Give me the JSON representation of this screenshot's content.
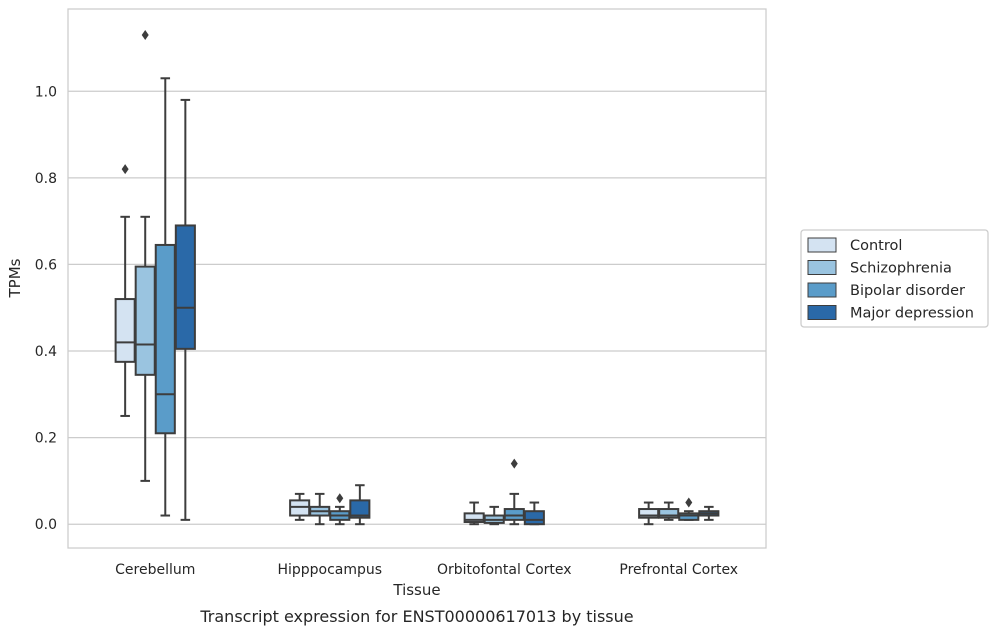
{
  "chart_data": {
    "type": "boxplot",
    "title": "",
    "caption": "Transcript expression for ENST00000617013 by tissue",
    "xlabel": "Tissue",
    "ylabel": "TPMs",
    "ylim": [
      -0.055,
      1.19
    ],
    "yticks": [
      0.0,
      0.2,
      0.4,
      0.6,
      0.8,
      1.0
    ],
    "ytick_labels": [
      "0.0",
      "0.2",
      "0.4",
      "0.6",
      "0.8",
      "1.0"
    ],
    "grid": "horizontal",
    "legend_position": "right",
    "categories": [
      "Cerebellum",
      "Hipppocampus",
      "Orbitofontal Cortex",
      "Prefrontal Cortex"
    ],
    "series": [
      {
        "name": "Control",
        "color": "#d4e3f2",
        "boxes": [
          {
            "whisker_low": 0.25,
            "q1": 0.375,
            "median": 0.42,
            "q3": 0.52,
            "whisker_high": 0.71,
            "outliers": [
              0.82
            ]
          },
          {
            "whisker_low": 0.01,
            "q1": 0.02,
            "median": 0.04,
            "q3": 0.055,
            "whisker_high": 0.07,
            "outliers": []
          },
          {
            "whisker_low": 0.0,
            "q1": 0.005,
            "median": 0.01,
            "q3": 0.025,
            "whisker_high": 0.05,
            "outliers": []
          },
          {
            "whisker_low": 0.0,
            "q1": 0.015,
            "median": 0.02,
            "q3": 0.035,
            "whisker_high": 0.05,
            "outliers": []
          }
        ]
      },
      {
        "name": "Schizophrenia",
        "color": "#9ac4e0",
        "boxes": [
          {
            "whisker_low": 0.1,
            "q1": 0.345,
            "median": 0.415,
            "q3": 0.595,
            "whisker_high": 0.71,
            "outliers": [
              1.13
            ]
          },
          {
            "whisker_low": 0.0,
            "q1": 0.02,
            "median": 0.03,
            "q3": 0.04,
            "whisker_high": 0.07,
            "outliers": []
          },
          {
            "whisker_low": 0.0,
            "q1": 0.003,
            "median": 0.01,
            "q3": 0.02,
            "whisker_high": 0.04,
            "outliers": []
          },
          {
            "whisker_low": 0.01,
            "q1": 0.015,
            "median": 0.02,
            "q3": 0.035,
            "whisker_high": 0.05,
            "outliers": []
          }
        ]
      },
      {
        "name": "Bipolar disorder",
        "color": "#5a9cc9",
        "boxes": [
          {
            "whisker_low": 0.02,
            "q1": 0.21,
            "median": 0.3,
            "q3": 0.645,
            "whisker_high": 1.03,
            "outliers": []
          },
          {
            "whisker_low": 0.0,
            "q1": 0.01,
            "median": 0.02,
            "q3": 0.03,
            "whisker_high": 0.04,
            "outliers": [
              0.06
            ]
          },
          {
            "whisker_low": 0.0,
            "q1": 0.01,
            "median": 0.02,
            "q3": 0.035,
            "whisker_high": 0.07,
            "outliers": [
              0.14
            ]
          },
          {
            "whisker_low": 0.01,
            "q1": 0.01,
            "median": 0.02,
            "q3": 0.025,
            "whisker_high": 0.03,
            "outliers": [
              0.05
            ]
          }
        ]
      },
      {
        "name": "Major depression",
        "color": "#2a69a8",
        "boxes": [
          {
            "whisker_low": 0.01,
            "q1": 0.405,
            "median": 0.5,
            "q3": 0.69,
            "whisker_high": 0.98,
            "outliers": []
          },
          {
            "whisker_low": 0.0,
            "q1": 0.015,
            "median": 0.02,
            "q3": 0.055,
            "whisker_high": 0.09,
            "outliers": []
          },
          {
            "whisker_low": 0.0,
            "q1": 0.0,
            "median": 0.01,
            "q3": 0.03,
            "whisker_high": 0.05,
            "outliers": []
          },
          {
            "whisker_low": 0.01,
            "q1": 0.02,
            "median": 0.025,
            "q3": 0.03,
            "whisker_high": 0.04,
            "outliers": []
          }
        ]
      }
    ]
  }
}
